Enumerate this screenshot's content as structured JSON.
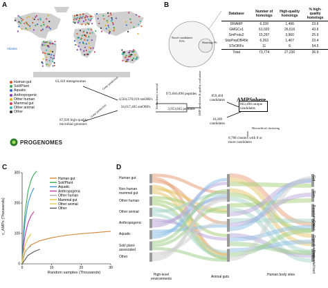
{
  "panels": {
    "a": "A",
    "b": "B",
    "c": "C",
    "d": "D"
  },
  "map": {
    "inset_label": "Atlantis",
    "legend": [
      {
        "label": "Human gut",
        "color": "#e05a1f"
      },
      {
        "label": "Soil/Plant",
        "color": "#35a84a"
      },
      {
        "label": "Aquatic",
        "color": "#2f6fd1"
      },
      {
        "label": "Anthropogenic",
        "color": "#8c3fb5"
      },
      {
        "label": "Other human",
        "color": "#e0b21f"
      },
      {
        "label": "Mammal gut",
        "color": "#c7455e"
      },
      {
        "label": "Other animal",
        "color": "#35b7b0"
      },
      {
        "label": "Other",
        "color": "#333333"
      }
    ]
  },
  "flow": {
    "metagenomes": "63,410 metagenomes",
    "genomes": "87,920 high-quality microbial genomes",
    "gene_prediction": "Gene prediction",
    "smorfs_top": "4,564,570,019 smORFs",
    "smorfs_bottom": "34,617,405 smORFs",
    "redundancy_removal": "Redundancy removal",
    "peptides_top": "973,666,898 peptides",
    "peptides_bottom": "3,953,845 peptides",
    "amp_prediction": "AMP prediction & quality evaluation",
    "candidates_top": "859,404 candidates",
    "candidates_bottom": "10,289 candidates",
    "ampsphere_title": "AMPSphere",
    "ampsphere_body": "863,498 unique candidates",
    "hier_clustering": "Hierarchical clustering",
    "clusters": "8,788 clusters with 8 or more candidates",
    "progenomes": "PROGENOMES"
  },
  "venn": {
    "novel": "Novel candidates 91%",
    "homologs": "Homologs 9%"
  },
  "table": {
    "headers": [
      "Database",
      "Number of homologs",
      "High-quality homologs",
      "% high-quality homologs"
    ],
    "rows": [
      [
        "DRAMP",
        "6,339",
        "1,496",
        "23.6"
      ],
      [
        "GMGCv1",
        "61,020",
        "26,616",
        "43.6"
      ],
      [
        "SmProtv2",
        "15,297",
        "3,960",
        "25.9"
      ],
      [
        "StarPepDB45k",
        "6,263",
        "1,467",
        "23.4"
      ],
      [
        "STsORFs",
        "11",
        "6",
        "54.5"
      ],
      [
        "Total",
        "73,774",
        "27,230",
        "36.9"
      ]
    ]
  },
  "chart_data": {
    "type": "line",
    "xlabel": "Random samples (Thousands)",
    "ylabel": "c_AMPs (Thousands)",
    "xlim": [
      0,
      30
    ],
    "ylim": [
      0,
      300
    ],
    "xticks": [
      0,
      10,
      20,
      30
    ],
    "yticks": [
      0,
      100,
      200,
      300
    ],
    "series": [
      {
        "name": "Human gut",
        "color": "#d2873a",
        "x": [
          0,
          1,
          3,
          6,
          10,
          15,
          20,
          25,
          30
        ],
        "y": [
          0,
          40,
          62,
          76,
          86,
          94,
          99,
          103,
          107
        ]
      },
      {
        "name": "Soil/Plant",
        "color": "#3aa856",
        "x": [
          0,
          0.5,
          1,
          2,
          3,
          4,
          5
        ],
        "y": [
          0,
          110,
          170,
          240,
          275,
          295,
          305
        ]
      },
      {
        "name": "Aquatic",
        "color": "#3b8fd6",
        "x": [
          0,
          0.5,
          1,
          2,
          3,
          4
        ],
        "y": [
          0,
          90,
          140,
          200,
          230,
          250
        ]
      },
      {
        "name": "Anthropogenic",
        "color": "#c23a9a",
        "x": [
          0,
          0.5,
          1,
          2,
          3,
          4
        ],
        "y": [
          0,
          60,
          95,
          135,
          158,
          172
        ]
      },
      {
        "name": "Other human",
        "color": "#a9a9a9",
        "x": [
          0,
          0.5,
          1,
          2,
          3
        ],
        "y": [
          0,
          25,
          38,
          52,
          58
        ]
      },
      {
        "name": "Mammal gut",
        "color": "#e0c23a",
        "x": [
          0,
          0.5,
          1,
          2,
          3
        ],
        "y": [
          0,
          40,
          62,
          85,
          98
        ]
      },
      {
        "name": "Other animal",
        "color": "#d8d05a",
        "x": [
          0,
          0.3,
          0.6,
          1
        ],
        "y": [
          0,
          30,
          42,
          50
        ]
      },
      {
        "name": "Other",
        "color": "#555555",
        "x": [
          0,
          2,
          4,
          6
        ],
        "y": [
          0,
          28,
          40,
          48
        ]
      }
    ]
  },
  "sankey": {
    "left_nodes": [
      "Human gut",
      "Non-human mammal gut",
      "Other human",
      "Other animal",
      "Anthropogenic",
      "Aquatic",
      "Soil/ plant-associated",
      "Other"
    ],
    "right_nodes": [
      "Gut",
      "Skin",
      "Respiratory tract",
      "Oral",
      "Digestive tract",
      "Urogenital tract"
    ],
    "col_left": "High-level environments",
    "col_mid": "Animal guts",
    "col_right": "Human body sites"
  }
}
